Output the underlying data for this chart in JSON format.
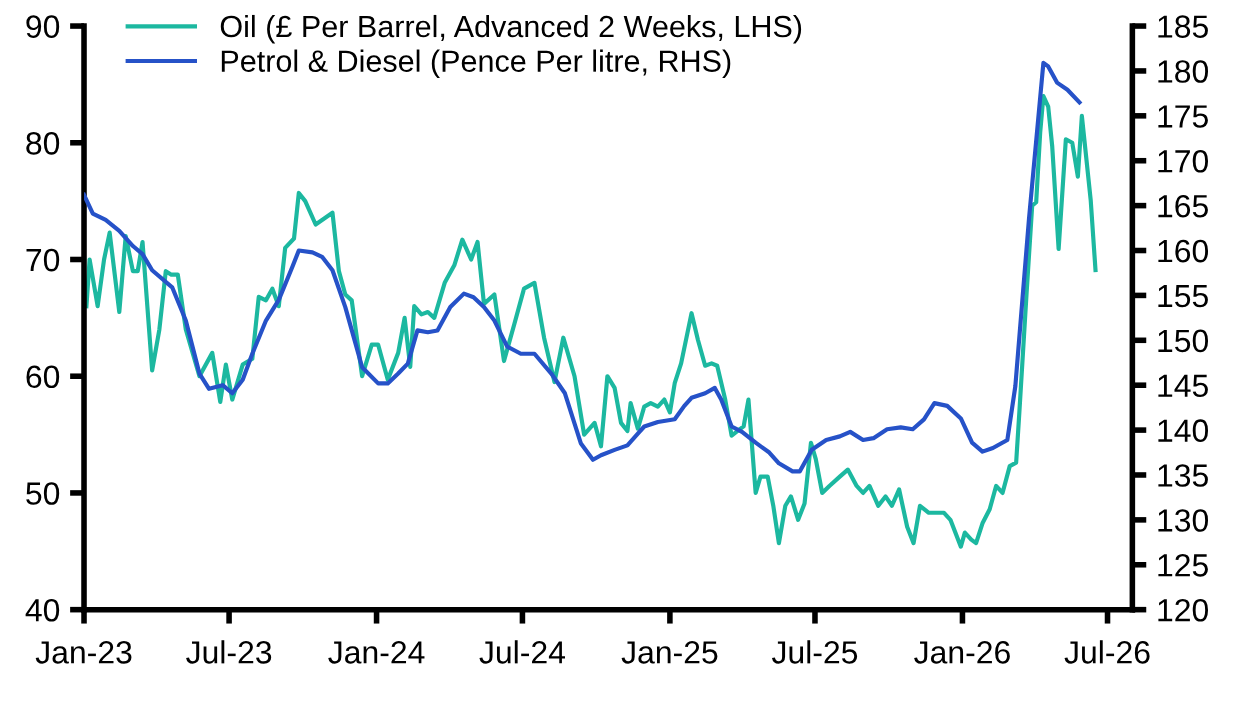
{
  "chart_data": {
    "type": "line",
    "xlim": [
      "2023-01-01",
      "2026-08-01"
    ],
    "xticks": [
      {
        "value": "2023-01-01",
        "label": "Jan-23"
      },
      {
        "value": "2023-07-01",
        "label": "Jul-23"
      },
      {
        "value": "2024-01-01",
        "label": "Jan-24"
      },
      {
        "value": "2024-07-01",
        "label": "Jul-24"
      },
      {
        "value": "2025-01-01",
        "label": "Jan-25"
      },
      {
        "value": "2025-07-01",
        "label": "Jul-25"
      },
      {
        "value": "2026-01-01",
        "label": "Jan-26"
      },
      {
        "value": "2026-07-01",
        "label": "Jul-26"
      }
    ],
    "ylim": [
      40,
      90
    ],
    "yticks": [
      40,
      50,
      60,
      70,
      80,
      90
    ],
    "y2lim": [
      120,
      185
    ],
    "y2ticks": [
      120,
      125,
      130,
      135,
      140,
      145,
      150,
      155,
      160,
      165,
      170,
      175,
      180,
      185
    ],
    "grid": false,
    "legend": "top left",
    "line_style": "solid",
    "marker": "none",
    "series": [
      {
        "name": "Oil (£ Per Barrel, Advanced 2 Weeks, LHS)",
        "color": "#1cb8a0",
        "axis": "y",
        "x": [
          "2023-01-04",
          "2023-01-08",
          "2023-01-18",
          "2023-01-26",
          "2023-02-02",
          "2023-02-14",
          "2023-02-22",
          "2023-03-03",
          "2023-03-09",
          "2023-03-15",
          "2023-03-27",
          "2023-04-05",
          "2023-04-13",
          "2023-04-20",
          "2023-04-28",
          "2023-05-08",
          "2023-05-25",
          "2023-06-10",
          "2023-06-20",
          "2023-06-27",
          "2023-07-05",
          "2023-07-18",
          "2023-07-30",
          "2023-08-07",
          "2023-08-16",
          "2023-08-24",
          "2023-09-01",
          "2023-09-09",
          "2023-09-20",
          "2023-09-26",
          "2023-10-04",
          "2023-10-17",
          "2023-11-07",
          "2023-11-15",
          "2023-11-23",
          "2023-12-01",
          "2023-12-14",
          "2023-12-26",
          "2024-01-03",
          "2024-01-15",
          "2024-01-28",
          "2024-02-05",
          "2024-02-12",
          "2024-02-17",
          "2024-02-26",
          "2024-03-05",
          "2024-03-13",
          "2024-03-26",
          "2024-04-07",
          "2024-04-17",
          "2024-04-28",
          "2024-05-06",
          "2024-05-14",
          "2024-05-27",
          "2024-06-08",
          "2024-06-21",
          "2024-07-03",
          "2024-07-16",
          "2024-07-28",
          "2024-08-10",
          "2024-08-21",
          "2024-09-04",
          "2024-09-16",
          "2024-09-29",
          "2024-10-07",
          "2024-10-15",
          "2024-10-24",
          "2024-11-01",
          "2024-11-09",
          "2024-11-13",
          "2024-11-22",
          "2024-11-30",
          "2024-12-08",
          "2024-12-17",
          "2024-12-25",
          "2025-01-01",
          "2025-01-07",
          "2025-01-15",
          "2025-01-28",
          "2025-02-05",
          "2025-02-14",
          "2025-02-22",
          "2025-03-01",
          "2025-03-11",
          "2025-03-19",
          "2025-03-28",
          "2025-04-03",
          "2025-04-09",
          "2025-04-18",
          "2025-04-24",
          "2025-05-03",
          "2025-05-10",
          "2025-05-17",
          "2025-05-25",
          "2025-06-01",
          "2025-06-10",
          "2025-06-18",
          "2025-06-26",
          "2025-07-02",
          "2025-07-10",
          "2025-07-19",
          "2025-08-01",
          "2025-08-11",
          "2025-08-22",
          "2025-08-30",
          "2025-09-07",
          "2025-09-18",
          "2025-09-27",
          "2025-10-05",
          "2025-10-14",
          "2025-10-24",
          "2025-11-01",
          "2025-11-09",
          "2025-11-20",
          "2025-11-30",
          "2025-12-09",
          "2025-12-17",
          "2025-12-30",
          "2026-01-04",
          "2026-01-12",
          "2026-01-18",
          "2026-01-26",
          "2026-02-04",
          "2026-02-12",
          "2026-02-20",
          "2026-03-01",
          "2026-03-09",
          "2026-03-13",
          "2026-03-22",
          "2026-03-29",
          "2026-04-03",
          "2026-04-08",
          "2026-04-12",
          "2026-04-18",
          "2026-04-23",
          "2026-05-01",
          "2026-05-10",
          "2026-05-18",
          "2026-05-25",
          "2026-05-30",
          "2026-06-10",
          "2026-06-16"
        ],
        "values": [
          66,
          70,
          66,
          70,
          72.3,
          65.5,
          72,
          69,
          69,
          71.5,
          60.5,
          64,
          69,
          68.7,
          68.7,
          64,
          60,
          62,
          57.8,
          61,
          58,
          61,
          61.5,
          66.8,
          66.5,
          67.5,
          66,
          71,
          71.8,
          75.7,
          75,
          73,
          74,
          69,
          67,
          66.5,
          60,
          62.7,
          62.7,
          59.7,
          62,
          65,
          60.8,
          66,
          65.3,
          65.5,
          65,
          68,
          69.5,
          71.7,
          70,
          71.5,
          66.2,
          67,
          61.3,
          64.5,
          67.5,
          68,
          63.3,
          59.5,
          63.3,
          60,
          55,
          56,
          54,
          60,
          59,
          56,
          55.3,
          57.7,
          55.5,
          57.4,
          57.7,
          57.4,
          58,
          56.9,
          59.4,
          61.1,
          65.4,
          63.1,
          60.9,
          61.1,
          60.9,
          58,
          54.9,
          55.4,
          55.7,
          58,
          50,
          51.4,
          51.4,
          48.9,
          45.7,
          48.9,
          49.7,
          47.7,
          49.1,
          54.3,
          52.9,
          50,
          50.6,
          51.4,
          52,
          50.6,
          50,
          50.6,
          48.9,
          49.7,
          48.9,
          50.3,
          47.1,
          45.7,
          48.9,
          48.3,
          48.3,
          48.3,
          47.7,
          45.4,
          46.6,
          46,
          45.7,
          47.4,
          48.6,
          50.6,
          50,
          52.3,
          52.6,
          56.9,
          67.1,
          74.6,
          74.9,
          80.9,
          84,
          83.1,
          79.7,
          70.9,
          80.3,
          80,
          77.1,
          82.3,
          75.1,
          69.1
        ]
      },
      {
        "name": "Petrol & Diesel (Pence Per litre, RHS)",
        "color": "#2652c8",
        "axis": "y2",
        "x": [
          "2023-01-01",
          "2023-01-12",
          "2023-01-28",
          "2023-02-14",
          "2023-03-03",
          "2023-03-15",
          "2023-03-27",
          "2023-04-21",
          "2023-05-08",
          "2023-05-25",
          "2023-06-06",
          "2023-06-23",
          "2023-07-05",
          "2023-07-18",
          "2023-07-30",
          "2023-08-16",
          "2023-09-01",
          "2023-09-18",
          "2023-09-26",
          "2023-10-13",
          "2023-10-25",
          "2023-11-07",
          "2023-11-23",
          "2023-12-14",
          "2024-01-03",
          "2024-01-15",
          "2024-01-28",
          "2024-02-09",
          "2024-02-21",
          "2024-03-05",
          "2024-03-17",
          "2024-04-02",
          "2024-04-19",
          "2024-05-01",
          "2024-05-14",
          "2024-05-27",
          "2024-06-12",
          "2024-06-29",
          "2024-07-16",
          "2024-08-06",
          "2024-08-23",
          "2024-09-12",
          "2024-09-27",
          "2024-10-07",
          "2024-10-24",
          "2024-11-09",
          "2024-11-22",
          "2024-11-30",
          "2024-12-17",
          "2025-01-07",
          "2025-01-19",
          "2025-01-28",
          "2025-02-14",
          "2025-02-26",
          "2025-03-06",
          "2025-03-19",
          "2025-04-01",
          "2025-04-18",
          "2025-05-05",
          "2025-05-17",
          "2025-06-03",
          "2025-06-12",
          "2025-06-27",
          "2025-07-15",
          "2025-08-01",
          "2025-08-14",
          "2025-08-30",
          "2025-09-12",
          "2025-09-29",
          "2025-10-16",
          "2025-10-31",
          "2025-11-14",
          "2025-11-27",
          "2025-12-13",
          "2025-12-30",
          "2026-01-13",
          "2026-01-26",
          "2026-02-08",
          "2026-02-26",
          "2026-03-08",
          "2026-03-25",
          "2026-04-12",
          "2026-04-18",
          "2026-04-29",
          "2026-05-12",
          "2026-05-27"
        ],
        "values": [
          166.2,
          164.1,
          163.4,
          162.2,
          160.5,
          159.6,
          157.8,
          155.9,
          152.2,
          146.3,
          144.6,
          145.0,
          144.1,
          145.6,
          148.5,
          152.2,
          154.5,
          158.2,
          160.0,
          159.8,
          159.3,
          157.8,
          153.7,
          147.0,
          145.2,
          145.2,
          146.3,
          147.4,
          151.1,
          150.9,
          151.1,
          153.7,
          155.2,
          154.8,
          153.7,
          152.2,
          149.3,
          148.5,
          148.5,
          146.3,
          144.1,
          138.5,
          136.7,
          137.2,
          137.8,
          138.3,
          139.6,
          140.4,
          140.9,
          141.2,
          142.7,
          143.6,
          144.1,
          144.7,
          143.4,
          140.4,
          139.8,
          138.6,
          137.5,
          136.3,
          135.4,
          135.4,
          137.8,
          138.9,
          139.3,
          139.8,
          138.9,
          139.1,
          140.1,
          140.3,
          140.1,
          141.2,
          143.0,
          142.7,
          141.3,
          138.6,
          137.6,
          138.0,
          138.9,
          144.9,
          163.5,
          180.9,
          180.5,
          178.7,
          177.9,
          176.5
        ]
      }
    ]
  }
}
